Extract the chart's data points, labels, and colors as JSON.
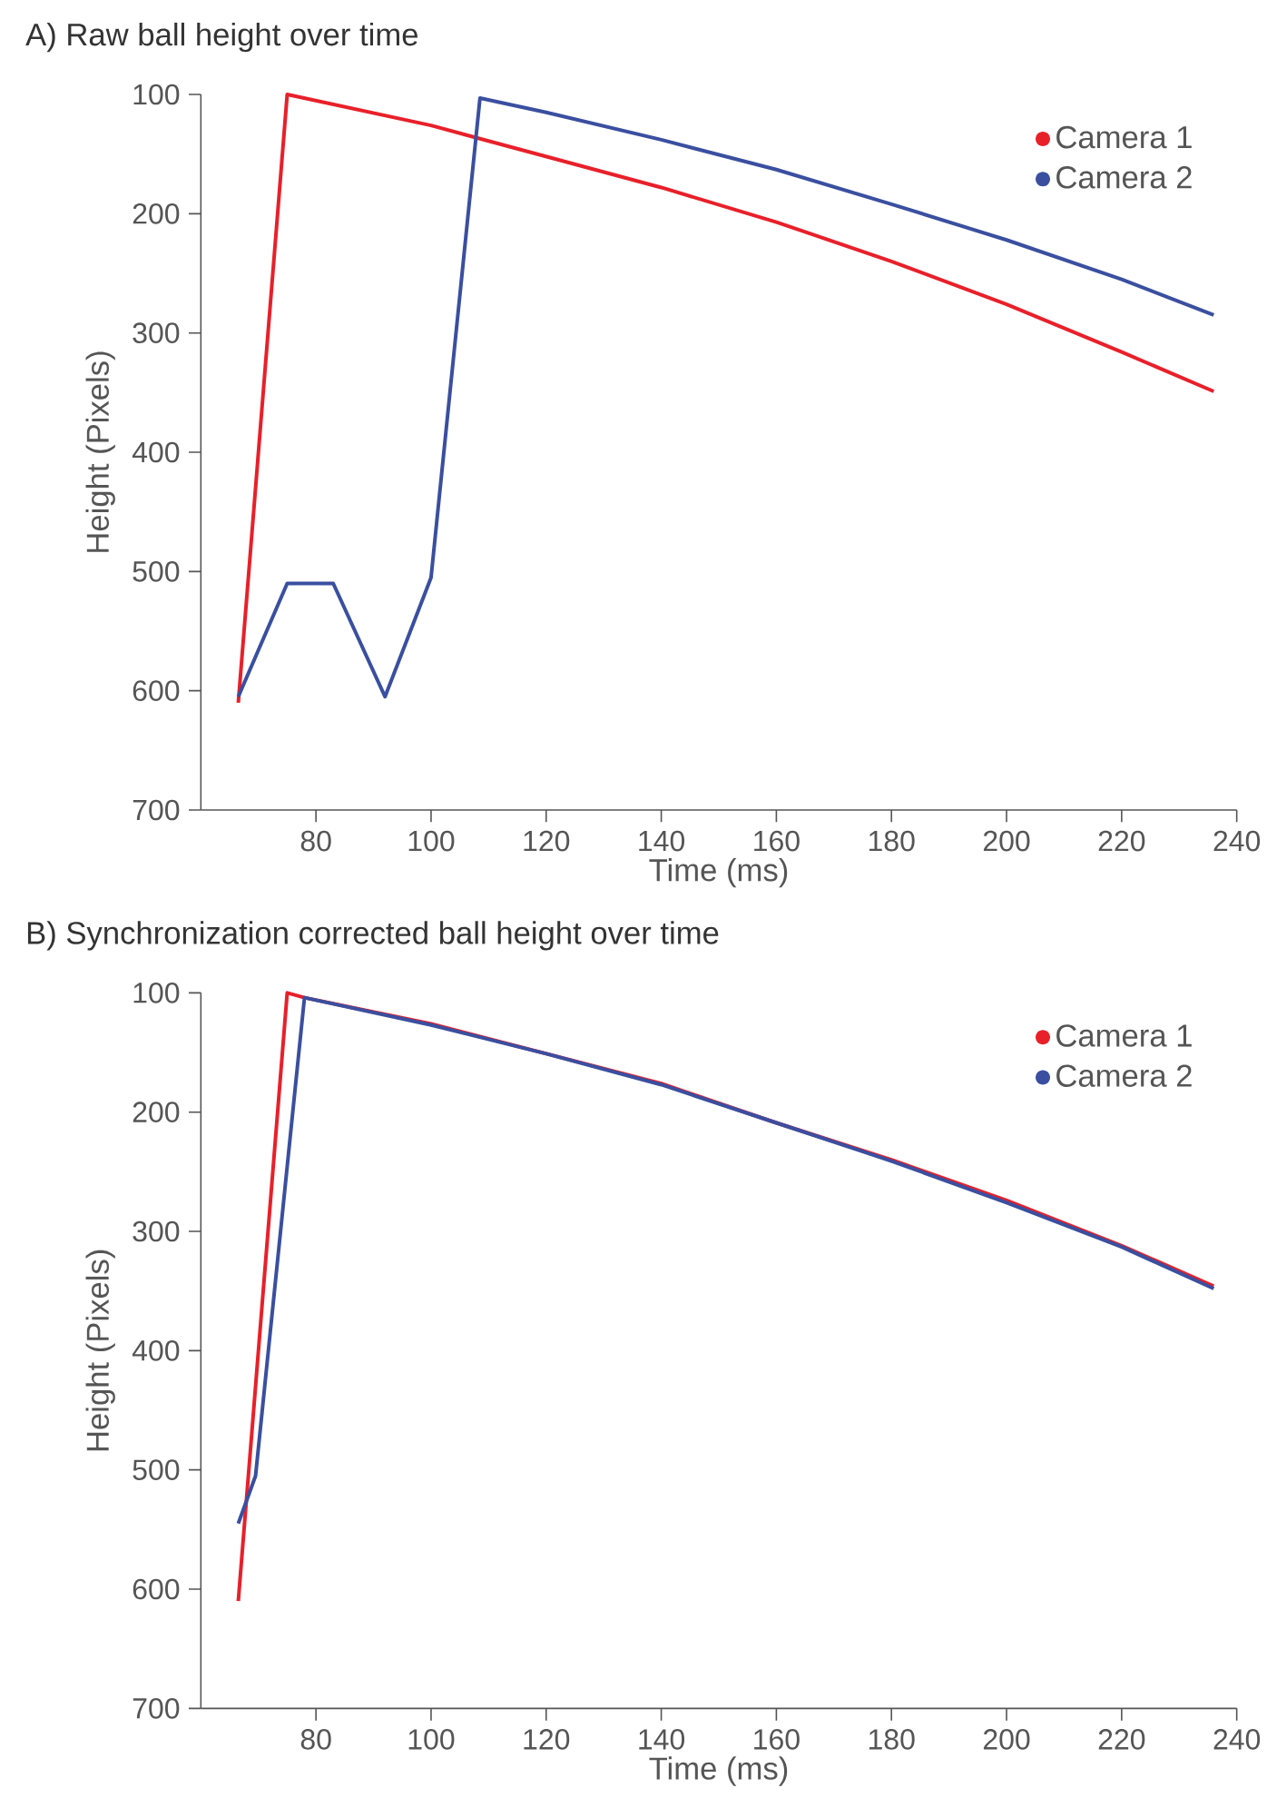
{
  "chart_data": [
    {
      "type": "line",
      "title": "A) Raw ball height over time",
      "xlabel": "Time (ms)",
      "ylabel": "Height (Pixels)",
      "xlim": [
        60,
        240
      ],
      "ylim": [
        700,
        100
      ],
      "xticks": [
        80,
        100,
        120,
        140,
        160,
        180,
        200,
        220,
        240
      ],
      "yticks": [
        100,
        200,
        300,
        400,
        500,
        600,
        700
      ],
      "legend": "top right",
      "series": [
        {
          "name": "Camera 1",
          "color": "#e8202a",
          "x": [
            66.5,
            75,
            100,
            120,
            140,
            160,
            180,
            200,
            220,
            236
          ],
          "values": [
            610,
            100,
            126,
            152,
            178,
            207,
            240,
            276,
            316,
            349
          ]
        },
        {
          "name": "Camera 2",
          "color": "#3a4fa0",
          "x": [
            66.5,
            75,
            83,
            92,
            100,
            108.5,
            120,
            140,
            160,
            180,
            200,
            220,
            236
          ],
          "values": [
            605,
            510,
            510,
            605,
            505,
            103,
            115,
            138,
            163,
            192,
            222,
            255,
            285
          ]
        }
      ]
    },
    {
      "type": "line",
      "title": "B) Synchronization corrected ball height over time",
      "xlabel": "Time (ms)",
      "ylabel": "Height (Pixels)",
      "xlim": [
        60,
        240
      ],
      "ylim": [
        700,
        100
      ],
      "xticks": [
        80,
        100,
        120,
        140,
        160,
        180,
        200,
        220,
        240
      ],
      "yticks": [
        100,
        200,
        300,
        400,
        500,
        600,
        700
      ],
      "legend": "top right",
      "series": [
        {
          "name": "Camera 1",
          "color": "#e8202a",
          "x": [
            66.5,
            75,
            78,
            100,
            120,
            140,
            160,
            180,
            200,
            220,
            236
          ],
          "values": [
            610,
            100,
            104,
            126,
            151,
            176,
            209,
            240,
            274,
            312,
            346
          ]
        },
        {
          "name": "Camera 2",
          "color": "#3a4fa0",
          "x": [
            66.5,
            69.5,
            78,
            100,
            120,
            140,
            160,
            180,
            200,
            220,
            236
          ],
          "values": [
            545,
            505,
            104,
            127,
            151,
            177,
            209,
            241,
            276,
            313,
            348
          ]
        }
      ]
    }
  ]
}
